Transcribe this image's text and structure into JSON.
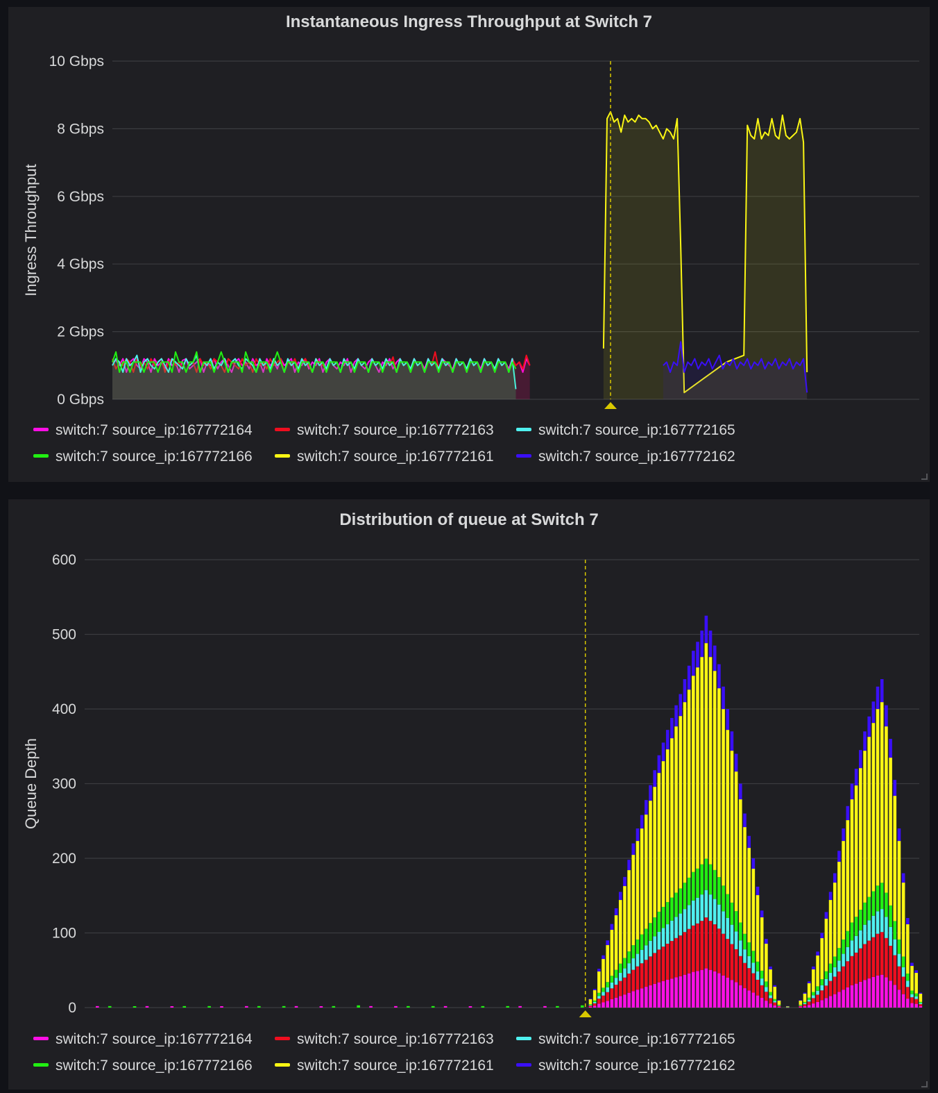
{
  "colors": {
    "magenta": "#ff0fe5",
    "red": "#ee0e1f",
    "cyan": "#4ff0ef",
    "green": "#21ef12",
    "yellow": "#faf614",
    "blue": "#3a0ff6",
    "grid": "#3b3c40",
    "text": "#d8d9da",
    "marker": "#d9c800"
  },
  "legend": [
    {
      "label": "switch:7 source_ip:167772164",
      "color": "#ff0fe5"
    },
    {
      "label": "switch:7 source_ip:167772163",
      "color": "#ee0e1f"
    },
    {
      "label": "switch:7 source_ip:167772165",
      "color": "#4ff0ef"
    },
    {
      "label": "switch:7 source_ip:167772166",
      "color": "#21ef12"
    },
    {
      "label": "switch:7 source_ip:167772161",
      "color": "#faf614"
    },
    {
      "label": "switch:7 source_ip:167772162",
      "color": "#3a0ff6"
    }
  ],
  "chart_data": [
    {
      "type": "line",
      "title": "Instantaneous Ingress Throughput at Switch 7",
      "ylabel": "Ingress Throughput",
      "xlabel": "",
      "yticks": [
        "0 Gbps",
        "2 Gbps",
        "4 Gbps",
        "6 Gbps",
        "8 Gbps",
        "10 Gbps"
      ],
      "ylim": [
        0,
        10
      ],
      "xlim": [
        0,
        230
      ],
      "grid": true,
      "legend_position": "bottom",
      "annotation_x": 142,
      "series": [
        {
          "name": "switch:7 source_ip:167772164",
          "color": "#ff0fe5",
          "values": [
            1.1,
            1.15,
            1.0,
            1.2,
            0.8,
            1.1,
            1.2,
            1.0,
            0.9,
            1.2,
            1.1,
            0.8,
            1.2,
            1.0,
            1.1,
            0.9,
            1.2,
            1.0,
            1.1,
            0.8,
            1.15,
            1.2,
            0.9,
            1.0,
            1.1,
            1.2,
            0.8,
            1.1,
            1.0,
            1.2,
            0.9,
            1.1,
            1.2,
            1.0,
            0.8,
            1.1,
            1.2,
            1.0,
            1.1,
            0.9,
            1.2,
            1.0,
            1.1,
            0.8,
            1.2,
            1.0,
            1.1,
            0.9,
            1.2,
            1.0,
            1.1,
            1.2,
            0.8,
            1.1,
            1.0,
            1.2,
            0.9,
            1.1,
            1.0,
            1.2,
            0.8,
            1.1,
            1.2,
            1.0,
            0.9,
            1.1,
            1.0,
            1.2,
            0.8,
            1.1,
            1.2,
            1.0,
            0.9,
            1.1,
            1.2,
            1.0,
            0.8,
            1.1,
            1.0,
            1.2,
            0.9,
            1.1,
            1.2,
            1.0,
            1.1,
            0.8,
            1.2,
            1.0,
            1.1,
            0.9,
            1.2,
            1.0,
            1.1,
            0.8,
            1.2,
            1.1,
            1.0,
            0.9,
            1.2,
            1.0,
            1.1,
            0.8,
            1.2,
            1.0,
            1.1,
            0.9,
            1.2,
            1.0,
            1.1,
            0.8,
            1.2,
            1.0,
            1.1,
            0.9,
            1.2,
            1.0,
            1.1,
            0.8,
            1.2,
            1.0
          ]
        },
        {
          "name": "switch:7 source_ip:167772163",
          "color": "#ee0e1f",
          "values": [
            1.2,
            0.9,
            1.1,
            1.0,
            1.2,
            1.1,
            0.8,
            1.2,
            1.0,
            1.1,
            0.9,
            1.2,
            1.0,
            1.1,
            1.2,
            0.8,
            1.1,
            1.2,
            1.0,
            1.1,
            0.9,
            1.2,
            1.0,
            1.1,
            0.8,
            1.2,
            1.0,
            1.1,
            0.9,
            1.2,
            1.1,
            1.0,
            0.8,
            1.2,
            1.1,
            1.0,
            0.9,
            1.2,
            1.0,
            1.1,
            0.8,
            1.2,
            1.0,
            1.1,
            0.9,
            1.2,
            1.0,
            1.1,
            1.2,
            0.8,
            1.1,
            1.0,
            1.2,
            0.9,
            1.1,
            1.2,
            1.0,
            0.8,
            1.2,
            1.1,
            1.0,
            0.9,
            1.2,
            1.0,
            1.1,
            0.8,
            1.2,
            1.0,
            1.1,
            0.9,
            1.2,
            1.0,
            1.1,
            0.8,
            1.2,
            1.0,
            1.1,
            0.9,
            1.2,
            1.0,
            1.25,
            0.8,
            1.2,
            1.0,
            1.1,
            0.9,
            1.2,
            1.0,
            1.1,
            0.8,
            1.2,
            1.0,
            1.4,
            0.9,
            1.2,
            1.0,
            1.1,
            0.8,
            1.2,
            1.0,
            1.1,
            0.9,
            1.2,
            1.0,
            1.1,
            0.8,
            1.2,
            1.0,
            1.1,
            0.9,
            1.2,
            1.0,
            1.1,
            0.8,
            1.2,
            1.0,
            1.1,
            0.9,
            1.3,
            1.0
          ]
        },
        {
          "name": "switch:7 source_ip:167772165",
          "color": "#4ff0ef",
          "values": [
            1.0,
            1.2,
            1.1,
            0.8,
            1.2,
            1.0,
            1.1,
            1.3,
            0.8,
            1.1,
            1.2,
            1.0,
            0.9,
            1.1,
            1.2,
            1.0,
            0.8,
            1.2,
            1.1,
            1.0,
            0.9,
            1.2,
            1.0,
            1.1,
            1.3,
            0.8,
            1.1,
            1.0,
            1.2,
            0.9,
            1.1,
            1.0,
            1.2,
            0.8,
            1.1,
            1.2,
            1.0,
            0.9,
            1.2,
            1.1,
            1.0,
            0.8,
            1.2,
            1.0,
            1.1,
            0.9,
            1.2,
            1.0,
            1.1,
            0.8,
            1.2,
            1.0,
            1.1,
            0.9,
            1.2,
            1.0,
            1.1,
            0.8,
            1.2,
            1.0,
            1.1,
            0.9,
            1.2,
            1.0,
            1.1,
            0.8,
            1.2,
            1.0,
            1.1,
            0.9,
            1.2,
            1.0,
            1.1,
            0.8,
            1.2,
            1.0,
            1.1,
            0.9,
            1.2,
            1.0,
            1.1,
            0.8,
            1.2,
            1.0,
            1.1,
            0.9,
            1.2,
            1.0,
            1.1,
            0.8,
            1.2,
            1.0,
            1.1,
            0.9,
            1.2,
            1.0,
            1.1,
            0.8,
            1.2,
            1.0,
            1.1,
            0.9,
            1.2,
            1.0,
            1.1,
            0.8,
            1.2,
            1.0,
            1.1,
            0.9,
            1.2,
            1.0,
            1.1,
            0.8,
            1.2,
            0.3
          ]
        },
        {
          "name": "switch:7 source_ip:167772166",
          "color": "#21ef12",
          "values": [
            1.1,
            1.4,
            0.8,
            1.1,
            1.1,
            0.8,
            1.1,
            1.1,
            1.1,
            0.8,
            1.1,
            1.1,
            1.1,
            0.8,
            1.1,
            1.1,
            1.1,
            0.8,
            1.4,
            1.1,
            1.1,
            0.8,
            1.1,
            1.1,
            1.4,
            0.8,
            1.1,
            1.1,
            1.1,
            0.8,
            1.1,
            1.4,
            1.1,
            0.8,
            1.1,
            1.1,
            1.1,
            0.8,
            1.4,
            1.1,
            1.1,
            0.8,
            1.1,
            1.1,
            1.1,
            0.8,
            1.1,
            1.4,
            1.1,
            0.8,
            1.1,
            1.1,
            1.1,
            0.8,
            1.1,
            1.1,
            1.1,
            0.8,
            1.1,
            1.1,
            1.1,
            0.8,
            1.1,
            1.1,
            1.1,
            0.8,
            1.1,
            1.1,
            1.1,
            0.8,
            1.1,
            1.1,
            1.1,
            0.8,
            1.1,
            1.1,
            1.1,
            0.8,
            1.1,
            1.1,
            1.1,
            0.8,
            1.1,
            1.1,
            1.1,
            0.8,
            1.1,
            1.1,
            1.1,
            0.8,
            1.1,
            1.1,
            1.1,
            0.8,
            1.1,
            1.1,
            1.1,
            0.8,
            1.1,
            1.1,
            1.1,
            0.8,
            1.1,
            1.1,
            1.1,
            0.8,
            1.1,
            1.1,
            1.1,
            0.8,
            1.1,
            1.1,
            1.1,
            0.8,
            1.1,
            0.9
          ]
        },
        {
          "name": "switch:7 source_ip:167772161",
          "color": "#faf614",
          "points": [
            [
              140,
              1.5
            ],
            [
              141,
              8.3
            ],
            [
              142,
              8.5
            ],
            [
              143,
              8.2
            ],
            [
              144,
              8.3
            ],
            [
              145,
              7.9
            ],
            [
              146,
              8.4
            ],
            [
              147,
              8.2
            ],
            [
              148,
              8.3
            ],
            [
              149,
              8.2
            ],
            [
              150,
              8.4
            ],
            [
              151,
              8.3
            ],
            [
              152,
              8.3
            ],
            [
              153,
              8.2
            ],
            [
              154,
              8.0
            ],
            [
              155,
              8.1
            ],
            [
              156,
              7.9
            ],
            [
              157,
              7.7
            ],
            [
              158,
              8.0
            ],
            [
              159,
              7.9
            ],
            [
              160,
              7.7
            ],
            [
              161,
              8.3
            ],
            [
              162,
              4.5
            ],
            [
              163,
              0.2
            ],
            [
              175,
              1.1
            ],
            [
              180,
              1.3
            ],
            [
              181,
              8.1
            ],
            [
              182,
              7.8
            ],
            [
              183,
              7.7
            ],
            [
              184,
              8.3
            ],
            [
              185,
              7.7
            ],
            [
              186,
              7.9
            ],
            [
              187,
              7.8
            ],
            [
              188,
              8.3
            ],
            [
              189,
              7.8
            ],
            [
              190,
              7.7
            ],
            [
              191,
              8.4
            ],
            [
              192,
              7.8
            ],
            [
              193,
              7.7
            ],
            [
              194,
              7.8
            ],
            [
              195,
              7.9
            ],
            [
              196,
              8.3
            ],
            [
              197,
              7.6
            ],
            [
              198,
              0.8
            ]
          ]
        },
        {
          "name": "switch:7 source_ip:167772162",
          "color": "#3a0ff6",
          "points": [
            [
              157,
              1.0
            ],
            [
              158,
              1.1
            ],
            [
              159,
              0.8
            ],
            [
              160,
              1.1
            ],
            [
              161,
              1.0
            ],
            [
              162,
              1.7
            ],
            [
              163,
              0.8
            ],
            [
              164,
              1.1
            ],
            [
              165,
              1.0
            ],
            [
              166,
              1.2
            ],
            [
              167,
              0.9
            ],
            [
              168,
              1.1
            ],
            [
              169,
              1.0
            ],
            [
              170,
              1.2
            ],
            [
              171,
              0.9
            ],
            [
              172,
              1.1
            ],
            [
              173,
              1.3
            ],
            [
              174,
              0.9
            ],
            [
              175,
              1.1
            ],
            [
              176,
              1.0
            ],
            [
              177,
              1.2
            ],
            [
              178,
              0.9
            ],
            [
              179,
              1.1
            ],
            [
              180,
              1.0
            ],
            [
              181,
              1.2
            ],
            [
              182,
              0.9
            ],
            [
              183,
              1.1
            ],
            [
              184,
              1.0
            ],
            [
              185,
              1.2
            ],
            [
              186,
              0.9
            ],
            [
              187,
              1.1
            ],
            [
              188,
              1.0
            ],
            [
              189,
              1.2
            ],
            [
              190,
              0.9
            ],
            [
              191,
              1.1
            ],
            [
              192,
              1.0
            ],
            [
              193,
              1.2
            ],
            [
              194,
              0.9
            ],
            [
              195,
              1.1
            ],
            [
              196,
              1.0
            ],
            [
              197,
              1.2
            ],
            [
              198,
              0.2
            ]
          ]
        }
      ]
    },
    {
      "type": "bar",
      "stacked": true,
      "title": "Distribution of queue at Switch 7",
      "ylabel": "Queue Depth",
      "xlabel": "",
      "yticks": [
        "0",
        "100",
        "200",
        "300",
        "400",
        "500",
        "600"
      ],
      "ylim": [
        0,
        600
      ],
      "grid": true,
      "legend_position": "bottom",
      "annotation_x": 120,
      "x_start": 121,
      "series_order": [
        "switch:7 source_ip:167772164",
        "switch:7 source_ip:167772163",
        "switch:7 source_ip:167772165",
        "switch:7 source_ip:167772166",
        "switch:7 source_ip:167772161",
        "switch:7 source_ip:167772162"
      ],
      "totals": [
        12,
        25,
        52,
        70,
        90,
        112,
        133,
        155,
        175,
        198,
        220,
        240,
        258,
        278,
        298,
        318,
        338,
        355,
        372,
        388,
        405,
        420,
        440,
        458,
        478,
        490,
        505,
        525,
        505,
        485,
        460,
        430,
        400,
        370,
        340,
        300,
        260,
        230,
        200,
        162,
        130,
        92,
        55,
        30,
        10,
        0,
        2,
        0,
        0,
        10,
        20,
        35,
        55,
        75,
        100,
        128,
        155,
        180,
        210,
        240,
        270,
        300,
        320,
        345,
        370,
        390,
        410,
        430,
        440,
        405,
        360,
        305,
        240,
        180,
        120,
        60,
        50,
        20
      ],
      "note_small_bars": [
        2,
        2,
        1,
        1,
        2,
        2,
        1,
        2,
        2,
        2,
        1,
        2,
        2,
        2,
        1,
        2,
        2,
        2,
        1,
        2,
        2,
        3,
        2,
        2,
        2,
        2,
        1,
        2,
        2,
        2,
        1,
        2,
        2,
        2,
        2,
        1,
        2,
        2,
        2,
        3
      ]
    }
  ]
}
